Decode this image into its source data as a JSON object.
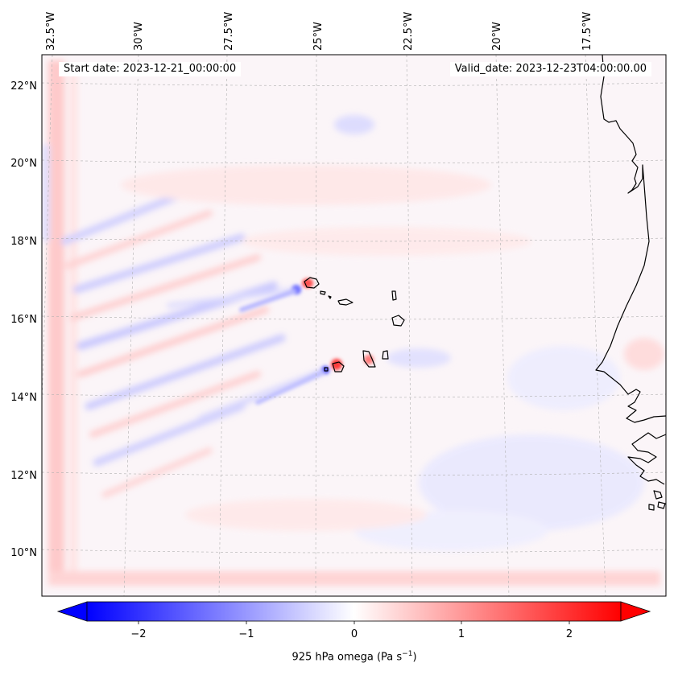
{
  "start_date_label": "Start date: 2023-12-21_00:00:00",
  "valid_date_label": "Valid_date: 2023-12-23T04:00:00.00",
  "longitude_labels": [
    "32.5°W",
    "30°W",
    "27.5°W",
    "25°W",
    "22.5°W",
    "20°W",
    "17.5°W"
  ],
  "latitude_labels": [
    "22°N",
    "20°N",
    "18°N",
    "16°N",
    "14°N",
    "12°N",
    "10°N"
  ],
  "colorbar": {
    "title_prefix": "925 hPa omega (Pa s",
    "title_exponent": "−1",
    "title_suffix": ")",
    "tick_labels": [
      "−2",
      "−1",
      "0",
      "1",
      "2"
    ],
    "tick_values": [
      -2,
      -1,
      0,
      1,
      2
    ],
    "range": [
      -2.6,
      2.6
    ],
    "low_color": "#0000ff",
    "mid_color": "#ffffff",
    "high_color": "#ff0000",
    "extend": "both"
  },
  "colors": {
    "coastline": "#000000",
    "gridline": "#b0b0b0",
    "background_tint": "#fbf5f8"
  }
}
